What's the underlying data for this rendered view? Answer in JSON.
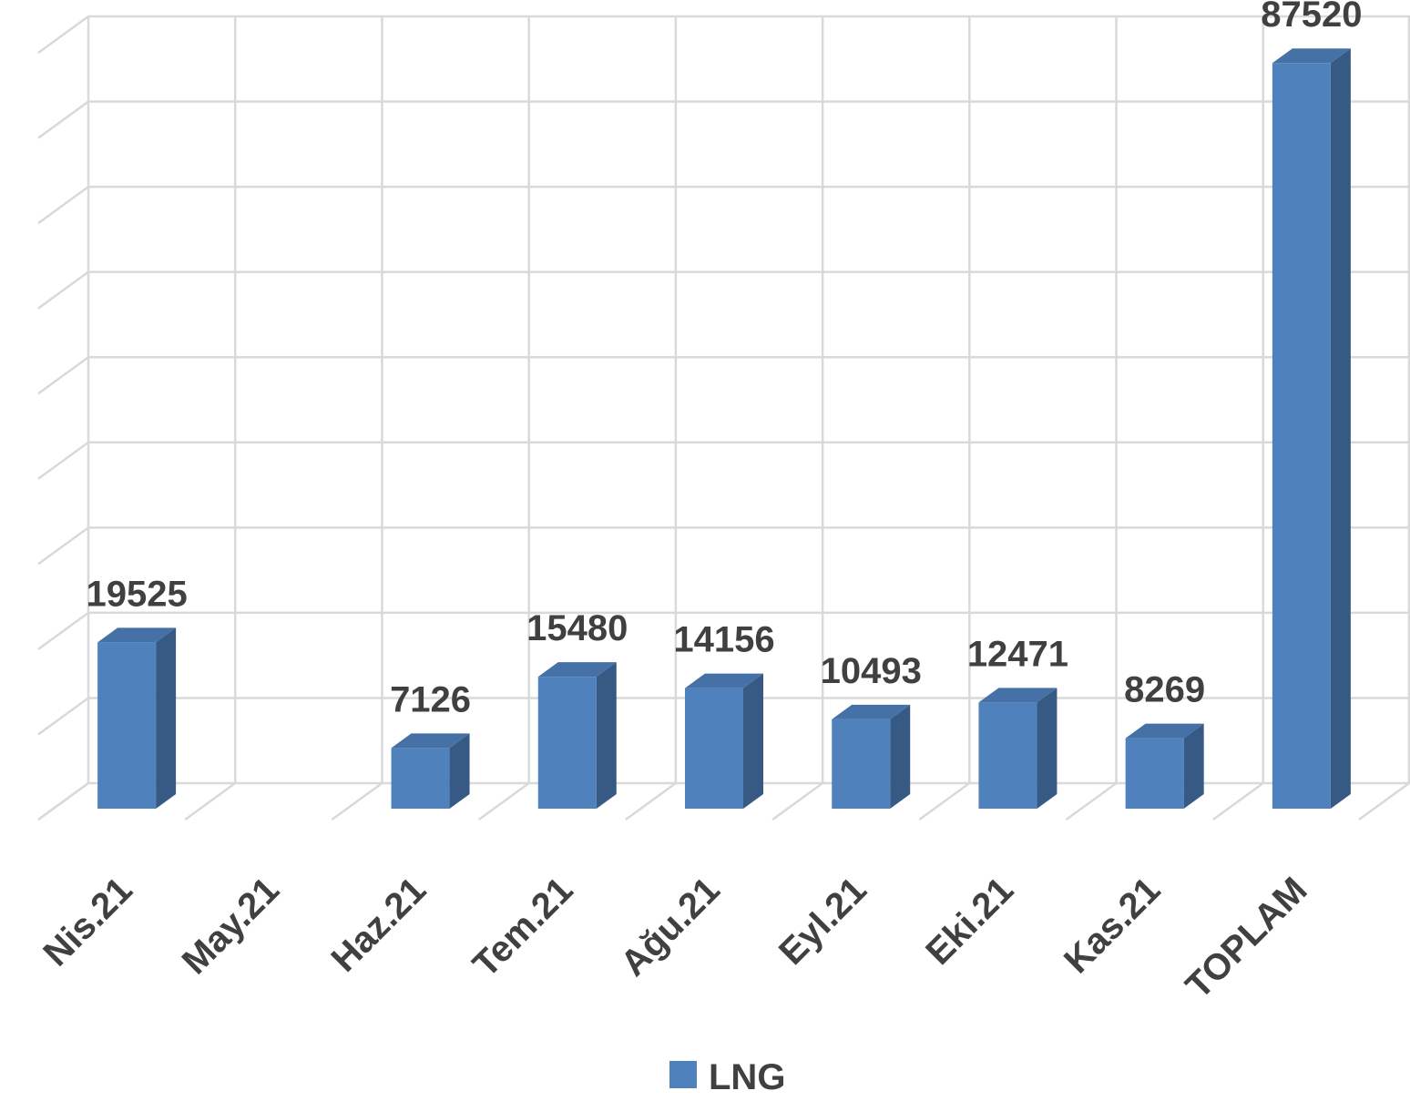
{
  "chart_data": {
    "type": "bar3d",
    "categories": [
      "Nis.21",
      "May.21",
      "Haz.21",
      "Tem.21",
      "Ağu.21",
      "Eyl.21",
      "Eki.21",
      "Kas.21",
      "TOPLAM"
    ],
    "series": [
      {
        "name": "LNG",
        "color": "#4f81bd",
        "values": [
          19525,
          null,
          7126,
          15480,
          14156,
          10493,
          12471,
          8269,
          87520
        ]
      }
    ],
    "ylim": [
      0,
      90000
    ],
    "yticks": [
      0,
      10000,
      20000,
      30000,
      40000,
      50000,
      60000,
      70000,
      80000,
      90000
    ],
    "grid": true,
    "legend": "bottom"
  }
}
